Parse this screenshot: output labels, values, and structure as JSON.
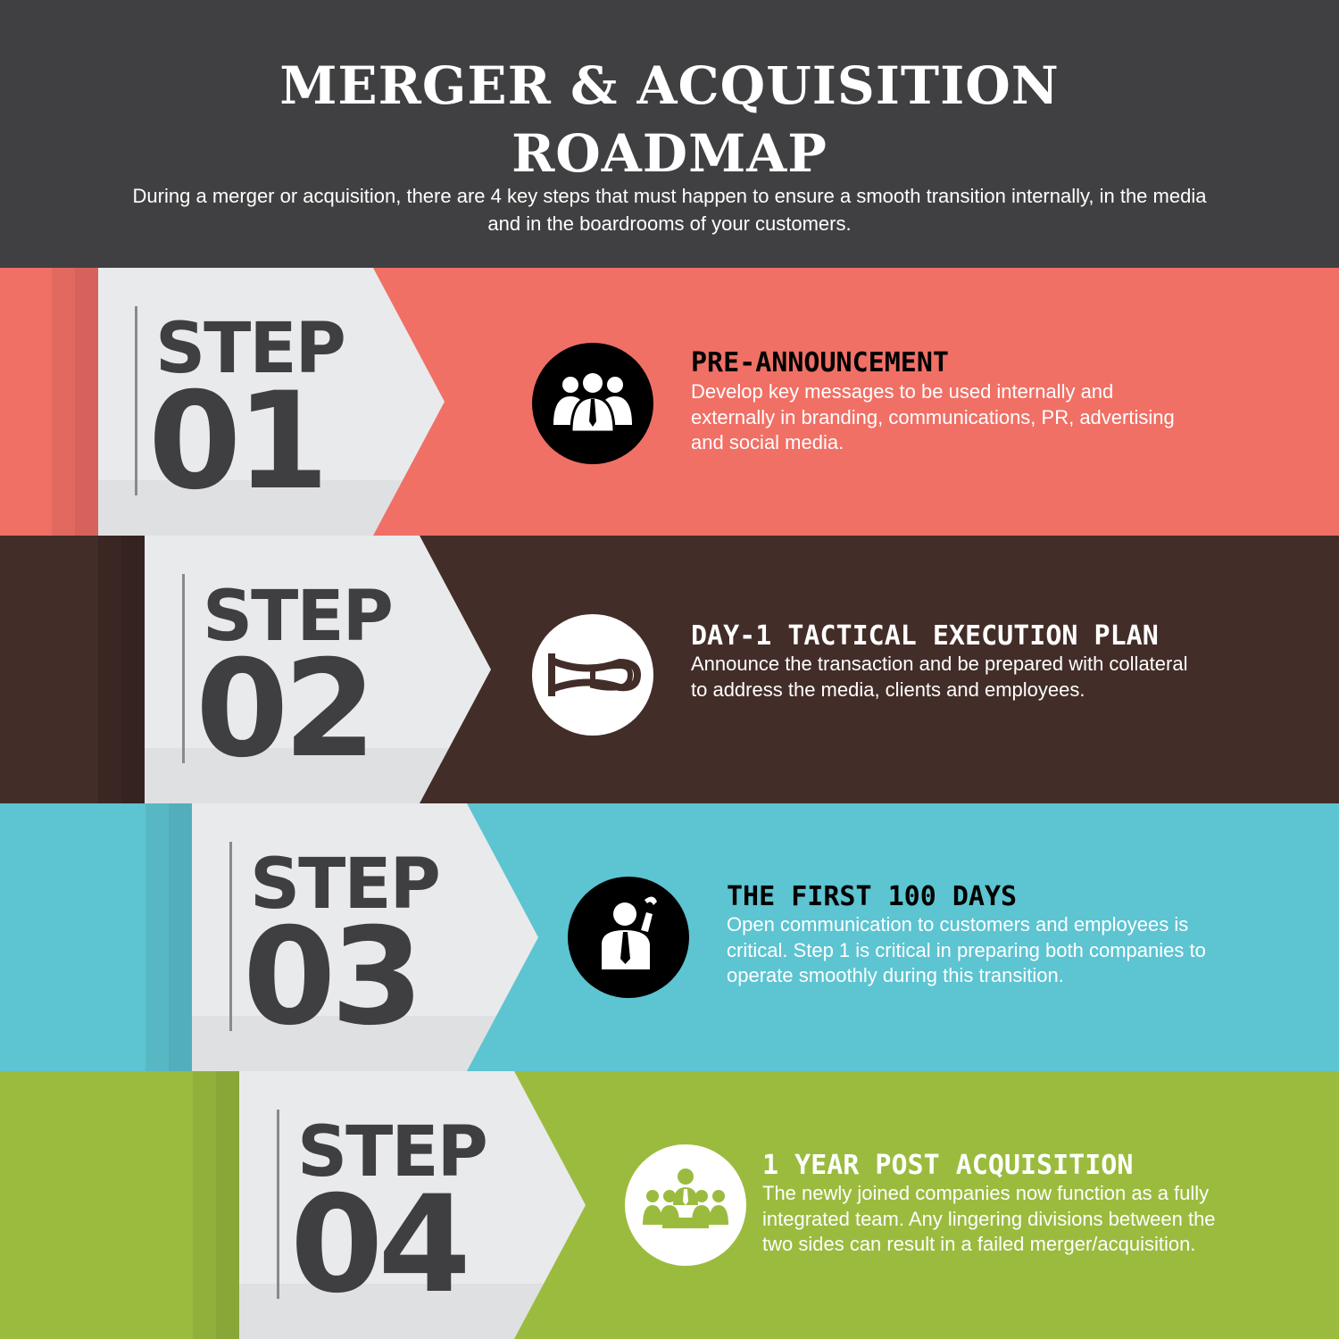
{
  "header": {
    "title_line1": "MERGER & ACQUISITION",
    "title_line2": "ROADMAP",
    "intro_line1": "During a merger or acquisition, there are 4 key steps that must happen to ensure a smooth transition internally, in the media",
    "intro_line2": "and in the boardrooms of your customers."
  },
  "colors": {
    "header_bg": "#404042",
    "step1": "#f07066",
    "step2": "#432d28",
    "step3": "#5dc4d1",
    "step4": "#9bbb3f",
    "arrow": "#e9eaec",
    "step_text": "#3f3f41"
  },
  "steps": [
    {
      "word": "STEP",
      "number": "01",
      "title": "PRE-ANNOUNCEMENT",
      "icon": "business-team-icon",
      "desc_lines": [
        "Develop key messages to be used internally and",
        "externally in branding, communications, PR, advertising",
        "and social media."
      ]
    },
    {
      "word": "STEP",
      "number": "02",
      "title": "DAY-1 TACTICAL EXECUTION PLAN",
      "icon": "horn-icon",
      "desc_lines": [
        "Announce the transaction and be prepared with collateral",
        "to address the media, clients and employees."
      ]
    },
    {
      "word": "STEP",
      "number": "03",
      "title": "THE FIRST 100 DAYS",
      "icon": "businessman-phone-icon",
      "desc_lines": [
        "Open communication to customers and employees is",
        "critical. Step 1 is critical in preparing both companies to",
        "operate smoothly during this transition."
      ]
    },
    {
      "word": "STEP",
      "number": "04",
      "title": "1 YEAR POST ACQUISITION",
      "icon": "meeting-table-icon",
      "desc_lines": [
        "The newly joined companies now function as a fully",
        "integrated team. Any lingering divisions between the",
        "two sides can result in a failed merger/acquisition."
      ]
    }
  ]
}
